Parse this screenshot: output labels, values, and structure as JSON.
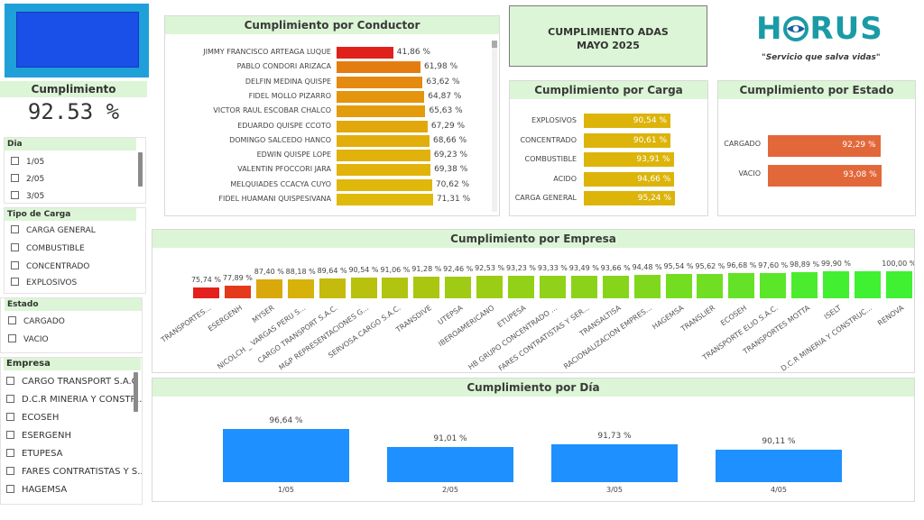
{
  "kpi": {
    "label": "Cumplimiento",
    "value": "92.53 %"
  },
  "slicers": {
    "dia": {
      "title": "Dia",
      "items": [
        "1/05",
        "2/05",
        "3/05"
      ]
    },
    "tipo_carga": {
      "title": "Tipo de Carga",
      "items": [
        "CARGA GENERAL",
        "COMBUSTIBLE",
        "CONCENTRADO",
        "EXPLOSIVOS"
      ]
    },
    "estado": {
      "title": "Estado",
      "items": [
        "CARGADO",
        "VACIO"
      ]
    },
    "empresa": {
      "title": "Empresa",
      "items": [
        "CARGO TRANSPORT S.A.C",
        "D.C.R MINERIA Y CONSTR...",
        "ECOSEH",
        "ESERGENH",
        "ETUPESA",
        "FARES CONTRATISTAS Y S...",
        "HAGEMSA"
      ]
    }
  },
  "header": {
    "title_line1": "CUMPLIMIENTO ADAS",
    "title_line2": "MAYO 2025"
  },
  "logo": {
    "brand_h": "H",
    "brand_rest": "RUS",
    "tagline": "\"Servicio que salva vidas\"",
    "primary_color": "#1a9ba6"
  },
  "conductor": {
    "title": "Cumplimiento por Conductor",
    "rows": [
      {
        "name": "JIMMY FRANCISCO ARTEAGA LUQUE",
        "value": 41.86,
        "label": "41,86 %",
        "color": "#e0201b"
      },
      {
        "name": "PABLO CONDORI ARIZACA",
        "value": 61.98,
        "label": "61,98 %",
        "color": "#e47d10"
      },
      {
        "name": "DELFIN MEDINA QUISPE",
        "value": 63.62,
        "label": "63,62 %",
        "color": "#e48a0e"
      },
      {
        "name": "FIDEL MOLLO PIZARRO",
        "value": 64.87,
        "label": "64,87 %",
        "color": "#e3950d"
      },
      {
        "name": "VICTOR RAUL ESCOBAR CHALCO",
        "value": 65.63,
        "label": "65,63 %",
        "color": "#e39c0c"
      },
      {
        "name": "EDUARDO QUISPE CCOTO",
        "value": 67.29,
        "label": "67,29 %",
        "color": "#e2a70b"
      },
      {
        "name": "DOMINGO SALCEDO HANCO",
        "value": 68.66,
        "label": "68,66 %",
        "color": "#e2ae0b"
      },
      {
        "name": "EDWIN QUISPE LOPE",
        "value": 69.23,
        "label": "69,23 %",
        "color": "#e1b20b"
      },
      {
        "name": "VALENTIN PFOCCORI JARA",
        "value": 69.38,
        "label": "69,38 %",
        "color": "#e1b30b"
      },
      {
        "name": "MELQUIADES CCACYA CUYO",
        "value": 70.62,
        "label": "70,62 %",
        "color": "#e0b70b"
      },
      {
        "name": "FIDEL HUAMANI QUISPESIVANA",
        "value": 71.31,
        "label": "71,31 %",
        "color": "#dfba0b"
      }
    ]
  },
  "carga": {
    "title": "Cumplimiento por Carga",
    "rows": [
      {
        "name": "EXPLOSIVOS",
        "value": 90.54,
        "label": "90,54 %"
      },
      {
        "name": "CONCENTRADO",
        "value": 90.61,
        "label": "90,61 %"
      },
      {
        "name": "COMBUSTIBLE",
        "value": 93.91,
        "label": "93,91 %"
      },
      {
        "name": "ACIDO",
        "value": 94.66,
        "label": "94,66 %"
      },
      {
        "name": "CARGA GENERAL",
        "value": 95.24,
        "label": "95,24 %"
      }
    ],
    "color": "#dcb40a"
  },
  "estado": {
    "title": "Cumplimiento por Estado",
    "rows": [
      {
        "name": "CARGADO",
        "value": 92.29,
        "label": "92,29 %"
      },
      {
        "name": "VACIO",
        "value": 93.08,
        "label": "93,08 %"
      }
    ],
    "color": "#e2683a"
  },
  "empresa": {
    "title": "Cumplimiento por Empresa",
    "rows": [
      {
        "name": "TRANSPORTES...",
        "value": 75.74,
        "label": "75,74 %",
        "color": "#e3201b"
      },
      {
        "name": "ESERGENH",
        "value": 77.89,
        "label": "77,89 %",
        "color": "#e4391a"
      },
      {
        "name": "MYSER",
        "value": 87.4,
        "label": "87,40 %",
        "color": "#d9a80b"
      },
      {
        "name": "NICOLCH _ VARGAS PERU S...",
        "value": 88.18,
        "label": "88,18 %",
        "color": "#d6b20b"
      },
      {
        "name": "CARGO TRANSPORT S.A.C.",
        "value": 89.64,
        "label": "89,64 %",
        "color": "#c4bb0c"
      },
      {
        "name": "M&P REPRESENTACIONES G...",
        "value": 90.54,
        "label": "90,54 %",
        "color": "#b8c10e"
      },
      {
        "name": "SERVOSA CARGO S.A.C.",
        "value": 91.06,
        "label": "91,06 %",
        "color": "#b0c410"
      },
      {
        "name": "TRANSDIVE",
        "value": 91.28,
        "label": "91,28 %",
        "color": "#abc611"
      },
      {
        "name": "UTEPSA",
        "value": 92.46,
        "label": "92,46 %",
        "color": "#a0cb14"
      },
      {
        "name": "IBEROAMERICANO",
        "value": 92.53,
        "label": "92,53 %",
        "color": "#9bcd15"
      },
      {
        "name": "ETUPESA",
        "value": 93.23,
        "label": "93,23 %",
        "color": "#92d118"
      },
      {
        "name": "HB GRUPO CONCENTRADO ...",
        "value": 93.33,
        "label": "93,33 %",
        "color": "#8fd219"
      },
      {
        "name": "FARES CONTRATISTAS Y SER...",
        "value": 93.49,
        "label": "93,49 %",
        "color": "#8bd31a"
      },
      {
        "name": "TRANSALTISA",
        "value": 93.66,
        "label": "93,66 %",
        "color": "#87d51b"
      },
      {
        "name": "RACIONALIZACION EMPRES...",
        "value": 94.48,
        "label": "94,48 %",
        "color": "#7fd81e"
      },
      {
        "name": "HAGEMSA",
        "value": 95.54,
        "label": "95,54 %",
        "color": "#73dd22"
      },
      {
        "name": "TRANSLIER",
        "value": 95.62,
        "label": "95,62 %",
        "color": "#70de23"
      },
      {
        "name": "ECOSEH",
        "value": 96.68,
        "label": "96,68 %",
        "color": "#64e227"
      },
      {
        "name": "TRANSPORTE ELIO S.A.C.",
        "value": 97.6,
        "label": "97,60 %",
        "color": "#5be62a"
      },
      {
        "name": "TRANSPORTES MOTTA",
        "value": 98.89,
        "label": "98,89 %",
        "color": "#4deb2e"
      },
      {
        "name": "ISELT",
        "value": 99.9,
        "label": "99,90 %",
        "color": "#42ef31"
      },
      {
        "name": "D.C.R MINERIA Y CONSTRUC...",
        "value": 100.0,
        "label": "",
        "color": "#40f032"
      },
      {
        "name": "RENOVA",
        "value": 100.0,
        "label": "100,00 %",
        "color": "#40f032"
      }
    ]
  },
  "dia": {
    "title": "Cumplimiento por Día",
    "rows": [
      {
        "name": "1/05",
        "value": 96.64,
        "label": "96,64 %"
      },
      {
        "name": "2/05",
        "value": 91.01,
        "label": "91,01 %"
      },
      {
        "name": "3/05",
        "value": 91.73,
        "label": "91,73 %"
      },
      {
        "name": "4/05",
        "value": 90.11,
        "label": "90,11 %"
      }
    ],
    "color": "#1e90ff"
  },
  "chart_data": [
    {
      "type": "bar",
      "title": "Cumplimiento por Conductor",
      "categories": [
        "JIMMY FRANCISCO ARTEAGA LUQUE",
        "PABLO CONDORI ARIZACA",
        "DELFIN MEDINA QUISPE",
        "FIDEL MOLLO PIZARRO",
        "VICTOR RAUL ESCOBAR CHALCO",
        "EDUARDO QUISPE CCOTO",
        "DOMINGO SALCEDO HANCO",
        "EDWIN QUISPE LOPE",
        "VALENTIN PFOCCORI JARA",
        "MELQUIADES CCACYA CUYO",
        "FIDEL HUAMANI QUISPESIVANA"
      ],
      "values": [
        41.86,
        61.98,
        63.62,
        64.87,
        65.63,
        67.29,
        68.66,
        69.23,
        69.38,
        70.62,
        71.31
      ]
    },
    {
      "type": "bar",
      "title": "Cumplimiento por Carga",
      "categories": [
        "EXPLOSIVOS",
        "CONCENTRADO",
        "COMBUSTIBLE",
        "ACIDO",
        "CARGA GENERAL"
      ],
      "values": [
        90.54,
        90.61,
        93.91,
        94.66,
        95.24
      ]
    },
    {
      "type": "bar",
      "title": "Cumplimiento por Estado",
      "categories": [
        "CARGADO",
        "VACIO"
      ],
      "values": [
        92.29,
        93.08
      ]
    },
    {
      "type": "bar",
      "title": "Cumplimiento por Empresa",
      "categories": [
        "TRANSPORTES...",
        "ESERGENH",
        "MYSER",
        "NICOLCH _ VARGAS PERU S...",
        "CARGO TRANSPORT S.A.C.",
        "M&P REPRESENTACIONES G...",
        "SERVOSA CARGO S.A.C.",
        "TRANSDIVE",
        "UTEPSA",
        "IBEROAMERICANO",
        "ETUPESA",
        "HB GRUPO CONCENTRADO ...",
        "FARES CONTRATISTAS Y SER...",
        "TRANSALTISA",
        "RACIONALIZACION EMPRES...",
        "HAGEMSA",
        "TRANSLIER",
        "ECOSEH",
        "TRANSPORTE ELIO S.A.C.",
        "TRANSPORTES MOTTA",
        "ISELT",
        "D.C.R MINERIA Y CONSTRUC...",
        "RENOVA"
      ],
      "values": [
        75.74,
        77.89,
        87.4,
        88.18,
        89.64,
        90.54,
        91.06,
        91.28,
        92.46,
        92.53,
        93.23,
        93.33,
        93.49,
        93.66,
        94.48,
        95.54,
        95.62,
        96.68,
        97.6,
        98.89,
        99.9,
        100.0,
        100.0
      ]
    },
    {
      "type": "bar",
      "title": "Cumplimiento por Día",
      "categories": [
        "1/05",
        "2/05",
        "3/05",
        "4/05"
      ],
      "values": [
        96.64,
        91.01,
        91.73,
        90.11
      ]
    }
  ]
}
